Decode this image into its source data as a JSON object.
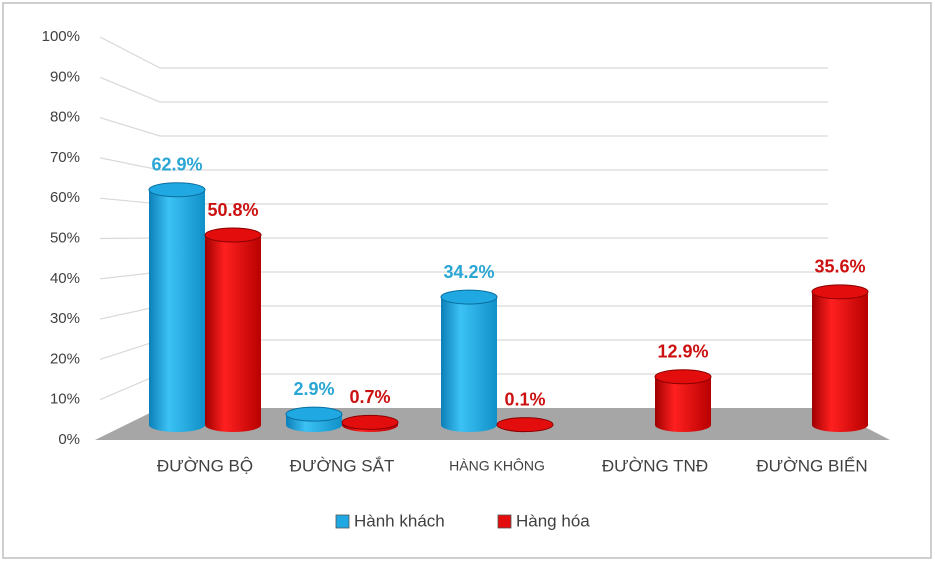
{
  "chart_data": {
    "type": "bar3d",
    "categories": [
      "ĐƯỜNG BỘ",
      "ĐƯỜNG SẮT",
      "HÀNG KHÔNG",
      "ĐƯỜNG TNĐ",
      "ĐƯỜNG BIỂN"
    ],
    "series": [
      {
        "name": "Hành khách",
        "color": "#1fa8e2",
        "values": [
          62.9,
          2.9,
          34.2,
          null,
          null
        ],
        "value_labels": [
          "62.9%",
          "2.9%",
          "34.2%",
          null,
          null
        ]
      },
      {
        "name": "Hàng hóa",
        "color": "#e30d0d",
        "values": [
          50.8,
          0.7,
          0.1,
          12.9,
          35.6
        ],
        "value_labels": [
          "50.8%",
          "0.7%",
          "0.1%",
          "12.9%",
          "35.6%"
        ]
      }
    ],
    "ylim": [
      0,
      100
    ],
    "yticks": [
      {
        "value": 0,
        "label": "0%"
      },
      {
        "value": 10,
        "label": "10%"
      },
      {
        "value": 20,
        "label": "20%"
      },
      {
        "value": 30,
        "label": "30%"
      },
      {
        "value": 40,
        "label": "40%"
      },
      {
        "value": 50,
        "label": "50%"
      },
      {
        "value": 60,
        "label": "60%"
      },
      {
        "value": 70,
        "label": "70%"
      },
      {
        "value": 80,
        "label": "80%"
      },
      {
        "value": 90,
        "label": "90%"
      },
      {
        "value": 100,
        "label": "100%"
      }
    ],
    "grid": true
  }
}
